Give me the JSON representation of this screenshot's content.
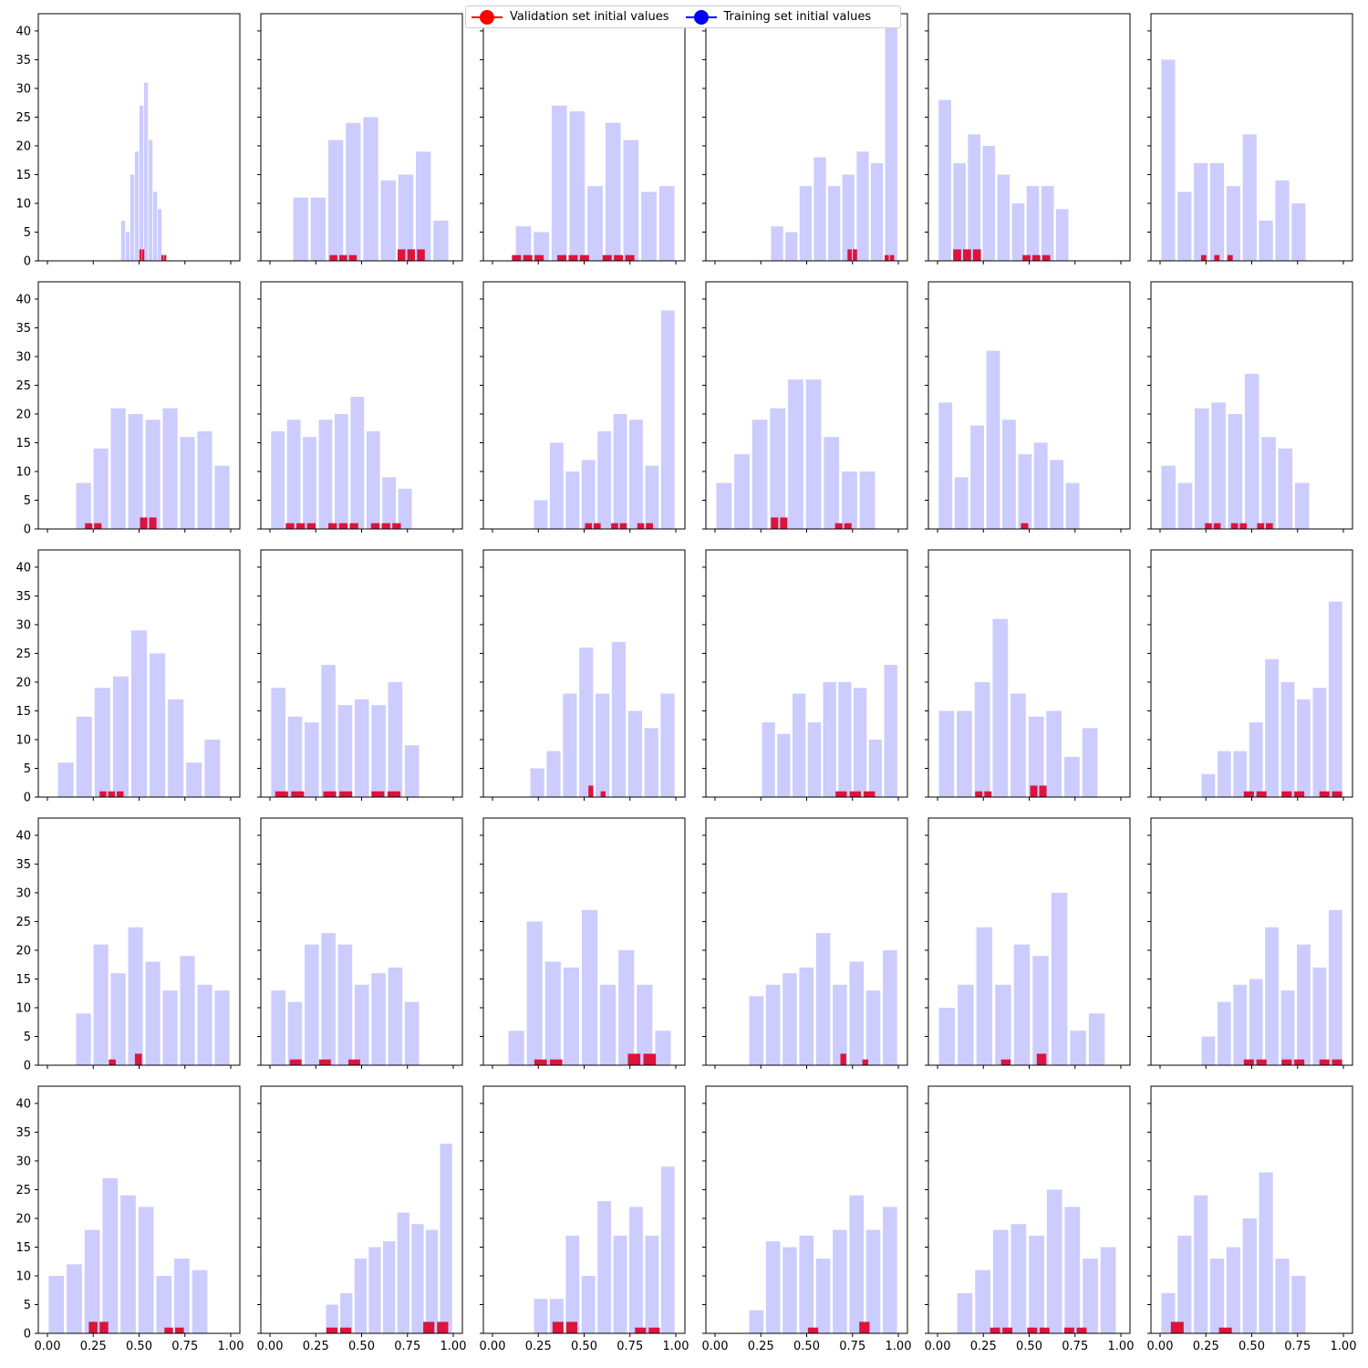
{
  "colors": {
    "training": "#ccccff",
    "validation": "#dc143c",
    "legend_validation": "#ff0000",
    "legend_training": "#0000ff"
  },
  "legend": {
    "validation_label": "Validation set initial values",
    "training_label": "Training set initial values"
  },
  "chart_data": {
    "type": "bar",
    "layout": "5x6 grid of histograms, shared x and y axes",
    "xlim": [
      0,
      1
    ],
    "ylim": [
      0,
      43
    ],
    "xticks": [
      0.0,
      0.25,
      0.5,
      0.75,
      1.0
    ],
    "xtick_labels": [
      "0.00",
      "0.25",
      "0.50",
      "0.75",
      "1.00"
    ],
    "yticks": [
      0,
      5,
      10,
      15,
      20,
      25,
      30,
      35,
      40
    ],
    "ytick_labels": [
      "0",
      "5",
      "10",
      "15",
      "20",
      "25",
      "30",
      "35",
      "40"
    ],
    "grid": false,
    "legend_position": "top-center",
    "panels": [
      {
        "training": {
          "range": [
            0.4,
            0.65
          ],
          "counts": [
            7,
            5,
            15,
            19,
            27,
            31,
            21,
            12,
            9,
            1
          ]
        },
        "validation": {
          "range": [
            0.5,
            0.65
          ],
          "counts": [
            2,
            2,
            0,
            0,
            0,
            0,
            0,
            0,
            1,
            1
          ]
        }
      },
      {
        "training": {
          "range": [
            0.12,
            0.98
          ],
          "counts": [
            11,
            11,
            21,
            24,
            25,
            14,
            15,
            19,
            7
          ]
        },
        "validation": {
          "range": [
            0.32,
            0.85
          ],
          "counts": [
            1,
            1,
            1,
            0,
            0,
            0,
            0,
            2,
            2,
            2
          ]
        }
      },
      {
        "training": {
          "range": [
            0.12,
            1.0
          ],
          "counts": [
            6,
            5,
            27,
            26,
            13,
            24,
            21,
            12,
            13
          ]
        },
        "validation": {
          "range": [
            0.1,
            0.78
          ],
          "counts": [
            1,
            1,
            1,
            0,
            1,
            1,
            1,
            0,
            1,
            1,
            1
          ]
        }
      },
      {
        "training": {
          "range": [
            0.3,
            1.0
          ],
          "counts": [
            6,
            5,
            13,
            18,
            13,
            15,
            19,
            17,
            41
          ]
        },
        "validation": {
          "range": [
            0.72,
            0.98
          ],
          "counts": [
            2,
            2,
            0,
            0,
            0,
            0,
            0,
            1,
            1
          ]
        }
      },
      {
        "training": {
          "range": [
            0.0,
            0.72
          ],
          "counts": [
            28,
            17,
            22,
            20,
            15,
            10,
            13,
            13,
            9
          ]
        },
        "validation": {
          "range": [
            0.08,
            0.62
          ],
          "counts": [
            2,
            2,
            2,
            0,
            0,
            0,
            0,
            1,
            1,
            1
          ]
        }
      },
      {
        "training": {
          "range": [
            0.0,
            0.8
          ],
          "counts": [
            35,
            12,
            17,
            17,
            13,
            22,
            7,
            14,
            10
          ]
        },
        "validation": {
          "range": [
            0.22,
            0.4
          ],
          "counts": [
            1,
            0,
            1,
            0,
            1
          ]
        }
      },
      {
        "training": {
          "range": [
            0.15,
            1.0
          ],
          "counts": [
            8,
            14,
            21,
            20,
            19,
            21,
            16,
            17,
            11
          ]
        },
        "validation": {
          "range": [
            0.2,
            0.6
          ],
          "counts": [
            1,
            1,
            0,
            0,
            0,
            0,
            2,
            2
          ]
        }
      },
      {
        "training": {
          "range": [
            0.0,
            0.78
          ],
          "counts": [
            17,
            19,
            16,
            19,
            20,
            23,
            17,
            9,
            7
          ]
        },
        "validation": {
          "range": [
            0.08,
            0.72
          ],
          "counts": [
            1,
            1,
            1,
            0,
            1,
            1,
            1,
            0,
            1,
            1,
            1
          ]
        }
      },
      {
        "training": {
          "range": [
            0.22,
            1.0
          ],
          "counts": [
            5,
            15,
            10,
            12,
            17,
            20,
            19,
            11,
            38
          ]
        },
        "validation": {
          "range": [
            0.5,
            0.88
          ],
          "counts": [
            1,
            1,
            0,
            1,
            1,
            0,
            1,
            1
          ]
        }
      },
      {
        "training": {
          "range": [
            0.0,
            0.88
          ],
          "counts": [
            8,
            13,
            19,
            21,
            26,
            26,
            16,
            10,
            10
          ]
        },
        "validation": {
          "range": [
            0.3,
            0.75
          ],
          "counts": [
            2,
            2,
            0,
            0,
            0,
            0,
            0,
            1,
            1
          ]
        }
      },
      {
        "training": {
          "range": [
            0.0,
            0.78
          ],
          "counts": [
            22,
            9,
            18,
            31,
            19,
            13,
            15,
            12,
            8
          ]
        },
        "validation": {
          "range": [
            0.45,
            0.5
          ],
          "counts": [
            1
          ]
        }
      },
      {
        "training": {
          "range": [
            0.0,
            0.82
          ],
          "counts": [
            11,
            8,
            21,
            22,
            20,
            27,
            16,
            14,
            8
          ]
        },
        "validation": {
          "range": [
            0.24,
            0.62
          ],
          "counts": [
            1,
            1,
            0,
            1,
            1,
            0,
            1,
            1
          ]
        }
      },
      {
        "training": {
          "range": [
            0.05,
            0.95
          ],
          "counts": [
            6,
            14,
            19,
            21,
            29,
            25,
            17,
            6,
            10
          ]
        },
        "validation": {
          "range": [
            0.28,
            0.42
          ],
          "counts": [
            1,
            1,
            1
          ]
        }
      },
      {
        "training": {
          "range": [
            0.0,
            0.82
          ],
          "counts": [
            19,
            14,
            13,
            23,
            16,
            17,
            16,
            20,
            9
          ]
        },
        "validation": {
          "range": [
            0.02,
            0.72
          ],
          "counts": [
            1,
            1,
            0,
            1,
            1,
            0,
            1,
            1
          ]
        }
      },
      {
        "training": {
          "range": [
            0.2,
            1.0
          ],
          "counts": [
            5,
            8,
            18,
            26,
            18,
            27,
            15,
            12,
            18
          ]
        },
        "validation": {
          "range": [
            0.52,
            0.62
          ],
          "counts": [
            2,
            0,
            1
          ]
        }
      },
      {
        "training": {
          "range": [
            0.25,
            1.0
          ],
          "counts": [
            13,
            11,
            18,
            13,
            20,
            20,
            19,
            10,
            23
          ]
        },
        "validation": {
          "range": [
            0.65,
            0.88
          ],
          "counts": [
            1,
            1,
            1
          ]
        }
      },
      {
        "training": {
          "range": [
            0.0,
            0.88
          ],
          "counts": [
            15,
            15,
            20,
            31,
            18,
            14,
            15,
            7,
            12
          ]
        },
        "validation": {
          "range": [
            0.2,
            0.6
          ],
          "counts": [
            1,
            1,
            0,
            0,
            0,
            0,
            2,
            2
          ]
        }
      },
      {
        "training": {
          "range": [
            0.22,
            1.0
          ],
          "counts": [
            4,
            8,
            8,
            13,
            24,
            20,
            17,
            19,
            34
          ]
        },
        "validation": {
          "range": [
            0.45,
            1.0
          ],
          "counts": [
            1,
            1,
            0,
            1,
            1,
            0,
            1,
            1
          ]
        }
      },
      {
        "training": {
          "range": [
            0.15,
            1.0
          ],
          "counts": [
            9,
            21,
            16,
            24,
            18,
            13,
            19,
            14,
            13
          ]
        },
        "validation": {
          "range": [
            0.33,
            0.52
          ],
          "counts": [
            1,
            0,
            0,
            2
          ]
        }
      },
      {
        "training": {
          "range": [
            0.0,
            0.82
          ],
          "counts": [
            13,
            11,
            21,
            23,
            21,
            14,
            16,
            17,
            11
          ]
        },
        "validation": {
          "range": [
            0.1,
            0.5
          ],
          "counts": [
            1,
            0,
            1,
            0,
            1
          ]
        }
      },
      {
        "training": {
          "range": [
            0.08,
            0.98
          ],
          "counts": [
            6,
            25,
            18,
            17,
            27,
            14,
            20,
            14,
            6
          ]
        },
        "validation": {
          "range": [
            0.22,
            0.9
          ],
          "counts": [
            1,
            1,
            0,
            0,
            0,
            0,
            2,
            2
          ]
        }
      },
      {
        "training": {
          "range": [
            0.18,
            1.0
          ],
          "counts": [
            12,
            14,
            16,
            17,
            23,
            14,
            18,
            13,
            20
          ]
        },
        "validation": {
          "range": [
            0.68,
            0.84
          ],
          "counts": [
            2,
            0,
            0,
            1
          ]
        }
      },
      {
        "training": {
          "range": [
            0.0,
            0.92
          ],
          "counts": [
            10,
            14,
            24,
            14,
            21,
            19,
            30,
            6,
            9
          ]
        },
        "validation": {
          "range": [
            0.34,
            0.6
          ],
          "counts": [
            1,
            0,
            0,
            2
          ]
        }
      },
      {
        "training": {
          "range": [
            0.22,
            1.0
          ],
          "counts": [
            5,
            11,
            14,
            15,
            24,
            13,
            21,
            17,
            27
          ]
        },
        "validation": {
          "range": [
            0.45,
            1.0
          ],
          "counts": [
            1,
            1,
            0,
            1,
            1,
            0,
            1,
            1
          ]
        }
      },
      {
        "training": {
          "range": [
            0.0,
            0.88
          ],
          "counts": [
            10,
            12,
            18,
            27,
            24,
            22,
            10,
            13,
            11
          ]
        },
        "validation": {
          "range": [
            0.22,
            0.75
          ],
          "counts": [
            2,
            2,
            0,
            0,
            0,
            0,
            0,
            1,
            1
          ]
        }
      },
      {
        "training": {
          "range": [
            0.3,
            1.0
          ],
          "counts": [
            5,
            7,
            13,
            15,
            16,
            21,
            19,
            18,
            33
          ]
        },
        "validation": {
          "range": [
            0.3,
            0.98
          ],
          "counts": [
            1,
            1,
            0,
            0,
            0,
            0,
            0,
            2,
            2
          ]
        }
      },
      {
        "training": {
          "range": [
            0.22,
            1.0
          ],
          "counts": [
            6,
            6,
            17,
            10,
            23,
            17,
            22,
            17,
            29
          ]
        },
        "validation": {
          "range": [
            0.32,
            0.92
          ],
          "counts": [
            2,
            2,
            0,
            0,
            0,
            0,
            1,
            1
          ]
        }
      },
      {
        "training": {
          "range": [
            0.18,
            1.0
          ],
          "counts": [
            4,
            16,
            15,
            17,
            13,
            18,
            24,
            18,
            22
          ]
        },
        "validation": {
          "range": [
            0.5,
            0.85
          ],
          "counts": [
            1,
            0,
            0,
            0,
            2
          ]
        }
      },
      {
        "training": {
          "range": [
            0.1,
            0.98
          ],
          "counts": [
            7,
            11,
            18,
            19,
            17,
            25,
            22,
            13,
            15
          ]
        },
        "validation": {
          "range": [
            0.28,
            0.82
          ],
          "counts": [
            1,
            1,
            0,
            1,
            1,
            0,
            1,
            1
          ]
        }
      },
      {
        "training": {
          "range": [
            0.0,
            0.8
          ],
          "counts": [
            7,
            17,
            24,
            13,
            15,
            20,
            28,
            13,
            10
          ]
        },
        "validation": {
          "range": [
            0.05,
            0.4
          ],
          "counts": [
            2,
            0,
            0,
            1
          ]
        }
      }
    ]
  }
}
